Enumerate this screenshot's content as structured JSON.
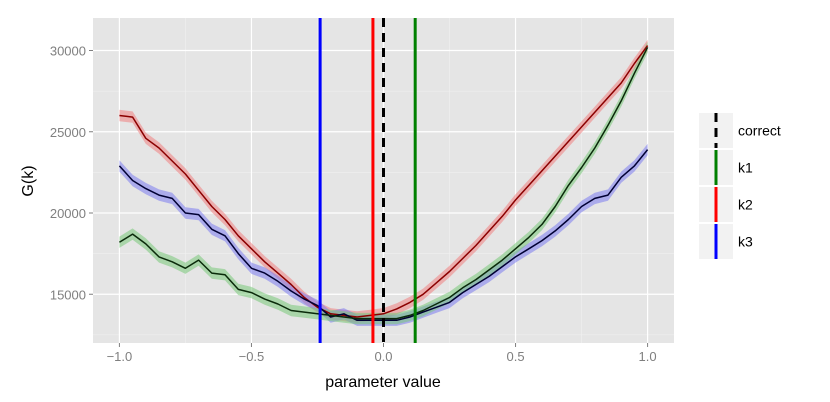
{
  "chart_data": {
    "type": "line",
    "title": "",
    "xlabel": "parameter value",
    "ylabel": "G(k)",
    "xlim": [
      -1.1,
      1.1
    ],
    "ylim": [
      12000,
      32000
    ],
    "xticks": [
      -1.0,
      -0.5,
      0.0,
      0.5,
      1.0
    ],
    "xtick_labels": [
      "−1.0",
      "−0.5",
      "0.0",
      "0.5",
      "1.0"
    ],
    "yticks": [
      15000,
      20000,
      25000,
      30000
    ],
    "ytick_labels": [
      "15000",
      "20000",
      "25000",
      "30000"
    ],
    "grid": true,
    "legend_position": "right",
    "x": [
      -1.0,
      -0.95,
      -0.9,
      -0.85,
      -0.8,
      -0.75,
      -0.7,
      -0.65,
      -0.6,
      -0.55,
      -0.5,
      -0.45,
      -0.4,
      -0.35,
      -0.3,
      -0.25,
      -0.2,
      -0.15,
      -0.1,
      -0.05,
      0.0,
      0.05,
      0.1,
      0.15,
      0.2,
      0.25,
      0.3,
      0.35,
      0.4,
      0.45,
      0.5,
      0.55,
      0.6,
      0.65,
      0.7,
      0.75,
      0.8,
      0.85,
      0.9,
      0.95,
      1.0
    ],
    "series": [
      {
        "color": "#8b0000",
        "band_color": "#f08080",
        "values": [
          26000,
          25900,
          24600,
          24000,
          23200,
          22400,
          21400,
          20400,
          19600,
          18600,
          17800,
          17000,
          16300,
          15600,
          14800,
          14200,
          13800,
          13700,
          13600,
          13700,
          13800,
          14100,
          14500,
          15000,
          15700,
          16400,
          17200,
          18000,
          18900,
          19800,
          20800,
          21700,
          22600,
          23500,
          24400,
          25300,
          26200,
          27100,
          28000,
          29200,
          30300
        ]
      },
      {
        "color": "#000033",
        "band_color": "#7b7bf0",
        "values": [
          22900,
          22000,
          21500,
          21100,
          20900,
          20000,
          19900,
          19000,
          18600,
          17500,
          16600,
          16300,
          15800,
          15200,
          14700,
          14300,
          13600,
          13800,
          13400,
          13400,
          13400,
          13400,
          13600,
          13900,
          14200,
          14500,
          15100,
          15600,
          16100,
          16700,
          17300,
          17800,
          18300,
          18900,
          19600,
          20400,
          20900,
          21100,
          22200,
          22900,
          23900
        ]
      },
      {
        "color": "#0a2a0a",
        "band_color": "#78c878",
        "values": [
          18200,
          18700,
          18100,
          17300,
          17000,
          16600,
          17100,
          16300,
          16200,
          15300,
          15100,
          14700,
          14400,
          14000,
          13900,
          13800,
          13700,
          13600,
          13500,
          13500,
          13500,
          13500,
          13700,
          14000,
          14400,
          14800,
          15400,
          15900,
          16500,
          17100,
          17800,
          18500,
          19300,
          20400,
          21700,
          22800,
          24000,
          25400,
          26900,
          28600,
          30200
        ]
      }
    ],
    "vlines": [
      {
        "key": "correct",
        "x": 0.0,
        "color": "#000000",
        "dashed": true
      },
      {
        "key": "k1",
        "x": 0.12,
        "color": "#008000",
        "dashed": false
      },
      {
        "key": "k2",
        "x": -0.04,
        "color": "#ff0000",
        "dashed": false
      },
      {
        "key": "k3",
        "x": -0.24,
        "color": "#0000ff",
        "dashed": false
      }
    ],
    "legend": [
      {
        "key": "correct",
        "label": "correct",
        "color": "#000000",
        "dashed": true
      },
      {
        "key": "k1",
        "label": "k1",
        "color": "#008000",
        "dashed": false
      },
      {
        "key": "k2",
        "label": "k2",
        "color": "#ff0000",
        "dashed": false
      },
      {
        "key": "k3",
        "label": "k3",
        "color": "#0000ff",
        "dashed": false
      }
    ],
    "panel_background": "#e5e5e5",
    "gridline_color": "#ffffff"
  }
}
